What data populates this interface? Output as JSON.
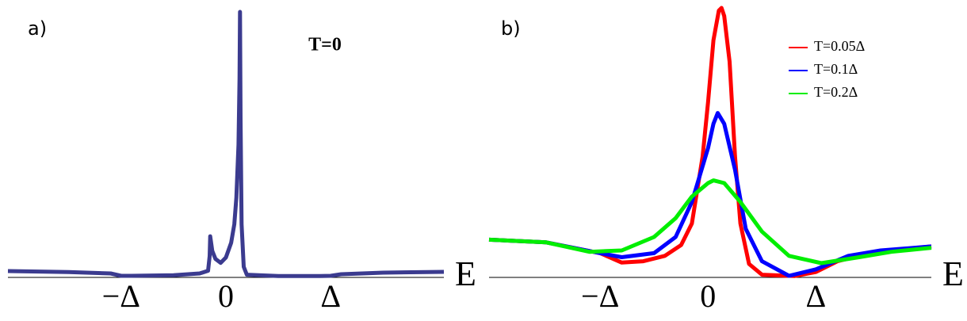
{
  "chart_data": [
    {
      "type": "line",
      "panel_label": "a)",
      "annotation": "T=0",
      "xlabel": "E",
      "xlim": [
        -2.08,
        2.08
      ],
      "ylim": [
        0,
        100
      ],
      "xticks": [
        {
          "value": -1,
          "label": "−Δ"
        },
        0,
        {
          "value": 1,
          "label": "Δ"
        }
      ],
      "series": [
        {
          "color": "#3b3b8f",
          "x": [
            -2.08,
            -1.5,
            -1.1,
            -1.0,
            -0.9,
            -0.5,
            -0.25,
            -0.17,
            -0.155,
            -0.15,
            -0.13,
            -0.1,
            -0.05,
            0,
            0.05,
            0.08,
            0.1,
            0.12,
            0.13,
            0.135,
            0.14,
            0.15,
            0.17,
            0.2,
            0.5,
            0.9,
            1.0,
            1.1,
            1.5,
            2.08
          ],
          "values": [
            2.4,
            2.0,
            1.5,
            0.6,
            0.6,
            0.8,
            1.5,
            2.5,
            8,
            15.5,
            10,
            7,
            5.5,
            7.5,
            13,
            20,
            30,
            50,
            75,
            100,
            60,
            20,
            4,
            1,
            0.5,
            0.5,
            0.6,
            1.2,
            1.8,
            2.1
          ]
        }
      ]
    },
    {
      "type": "line",
      "panel_label": "b)",
      "xlabel": "E",
      "xlim": [
        -2.03,
        2.07
      ],
      "ylim": [
        0,
        100
      ],
      "xticks": [
        {
          "value": -1,
          "label": "−Δ"
        },
        0,
        {
          "value": 1,
          "label": "Δ"
        }
      ],
      "series": [
        {
          "name": "T=0.05Δ",
          "color": "#ff0000",
          "x": [
            -2.03,
            -1.5,
            -1.0,
            -0.8,
            -0.6,
            -0.4,
            -0.25,
            -0.15,
            -0.05,
            0,
            0.05,
            0.1,
            0.125,
            0.15,
            0.2,
            0.25,
            0.3,
            0.38,
            0.5,
            0.8,
            1.0,
            1.2,
            1.5,
            2.07
          ],
          "values": [
            14,
            13,
            9,
            5.5,
            6,
            8,
            12,
            20,
            45,
            65,
            88,
            99,
            100,
            97,
            80,
            45,
            20,
            5,
            1,
            0.5,
            2,
            6,
            9,
            11.5
          ]
        },
        {
          "name": "T=0.1Δ",
          "color": "#0000ff",
          "x": [
            -2.03,
            -1.5,
            -1.0,
            -0.8,
            -0.5,
            -0.3,
            -0.15,
            0,
            0.05,
            0.09,
            0.15,
            0.25,
            0.35,
            0.5,
            0.75,
            1.0,
            1.3,
            1.6,
            2.07
          ],
          "values": [
            14,
            13,
            9,
            7.5,
            9,
            15,
            28,
            48,
            57,
            61,
            57,
            40,
            18,
            6,
            0.6,
            3,
            8,
            10,
            11.5
          ]
        },
        {
          "name": "T=0.2Δ",
          "color": "#00ee00",
          "x": [
            -2.03,
            -1.5,
            -1.1,
            -0.8,
            -0.5,
            -0.3,
            -0.15,
            0,
            0.05,
            0.15,
            0.3,
            0.5,
            0.75,
            1.05,
            1.4,
            1.7,
            2.07
          ],
          "values": [
            14,
            13,
            9.5,
            10,
            15,
            22,
            30,
            35,
            36,
            35,
            28,
            17,
            8,
            5.3,
            7.5,
            9.5,
            11
          ]
        }
      ]
    }
  ]
}
